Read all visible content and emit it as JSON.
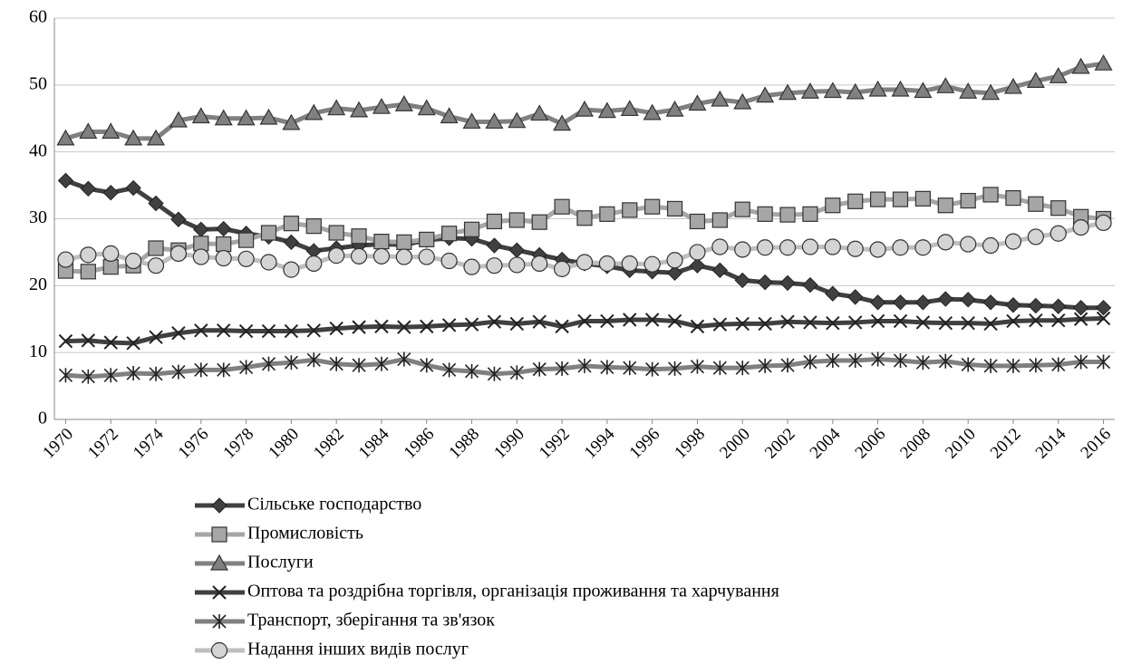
{
  "chart_data": {
    "type": "line",
    "x": [
      1970,
      1971,
      1972,
      1973,
      1974,
      1975,
      1976,
      1977,
      1978,
      1979,
      1980,
      1981,
      1982,
      1983,
      1984,
      1985,
      1986,
      1987,
      1988,
      1989,
      1990,
      1991,
      1992,
      1993,
      1994,
      1995,
      1996,
      1997,
      1998,
      1999,
      2000,
      2001,
      2002,
      2003,
      2004,
      2005,
      2006,
      2007,
      2008,
      2009,
      2010,
      2011,
      2012,
      2013,
      2014,
      2015,
      2016
    ],
    "xlim": [
      1969.5,
      2016.5
    ],
    "xticks": [
      1970,
      1972,
      1974,
      1976,
      1978,
      1980,
      1982,
      1984,
      1986,
      1988,
      1990,
      1992,
      1994,
      1996,
      1998,
      2000,
      2002,
      2004,
      2006,
      2008,
      2010,
      2012,
      2014,
      2016
    ],
    "ylim": [
      0,
      60
    ],
    "yticks": [
      0,
      10,
      20,
      30,
      40,
      50,
      60
    ],
    "grid": true,
    "series": [
      {
        "name": "Сільське господарство",
        "color": "#404040",
        "marker": "diamond",
        "values": [
          35.7,
          34.5,
          33.9,
          34.6,
          32.3,
          29.9,
          28.4,
          28.5,
          27.8,
          27.3,
          26.5,
          25.2,
          25.6,
          26.0,
          26.2,
          26.1,
          26.8,
          27.1,
          27.0,
          26.0,
          25.3,
          24.6,
          23.9,
          23.3,
          22.9,
          22.3,
          22.1,
          21.9,
          23.0,
          22.3,
          20.8,
          20.5,
          20.4,
          20.1,
          18.8,
          18.3,
          17.5,
          17.5,
          17.5,
          18.0,
          17.9,
          17.5,
          17.1,
          17.0,
          16.9,
          16.7,
          16.7
        ]
      },
      {
        "name": "Промисловість",
        "color": "#a6a6a6",
        "marker": "square",
        "values": [
          22.2,
          22.1,
          22.8,
          23.0,
          25.6,
          25.3,
          26.3,
          26.2,
          26.8,
          27.9,
          29.3,
          28.9,
          27.9,
          27.4,
          26.6,
          26.5,
          26.9,
          27.8,
          28.4,
          29.6,
          29.8,
          29.5,
          31.8,
          30.1,
          30.7,
          31.3,
          31.8,
          31.5,
          29.6,
          29.8,
          31.4,
          30.7,
          30.6,
          30.7,
          32.0,
          32.6,
          32.9,
          32.9,
          33.0,
          32.0,
          32.7,
          33.6,
          33.1,
          32.2,
          31.6,
          30.3,
          30.0
        ]
      },
      {
        "name": "Послуги",
        "color": "#808080",
        "marker": "triangle",
        "values": [
          42.0,
          43.0,
          43.0,
          42.0,
          42.0,
          44.7,
          45.3,
          45.0,
          45.0,
          45.1,
          44.3,
          45.8,
          46.5,
          46.2,
          46.7,
          47.1,
          46.5,
          45.3,
          44.5,
          44.5,
          44.6,
          45.7,
          44.2,
          46.3,
          46.1,
          46.4,
          45.8,
          46.3,
          47.2,
          47.8,
          47.4,
          48.4,
          48.8,
          49.0,
          49.1,
          48.9,
          49.3,
          49.3,
          49.1,
          49.8,
          49.0,
          48.8,
          49.7,
          50.6,
          51.3,
          52.7,
          53.2
        ]
      },
      {
        "name": "Оптова та роздрібна торгівля, організація проживання та харчування",
        "color": "#404040",
        "marker": "x",
        "values": [
          11.7,
          11.8,
          11.5,
          11.4,
          12.3,
          12.9,
          13.3,
          13.3,
          13.2,
          13.2,
          13.2,
          13.3,
          13.6,
          13.8,
          13.9,
          13.8,
          13.9,
          14.1,
          14.2,
          14.6,
          14.3,
          14.6,
          13.9,
          14.7,
          14.7,
          14.9,
          14.9,
          14.7,
          13.9,
          14.2,
          14.3,
          14.3,
          14.6,
          14.5,
          14.4,
          14.5,
          14.7,
          14.7,
          14.5,
          14.4,
          14.4,
          14.3,
          14.7,
          14.8,
          14.8,
          15.0,
          15.1
        ]
      },
      {
        "name": "Транспорт,  зберігання та зв'язок",
        "color": "#808080",
        "marker": "asterisk",
        "values": [
          6.6,
          6.4,
          6.6,
          6.9,
          6.8,
          7.1,
          7.4,
          7.4,
          7.8,
          8.3,
          8.5,
          8.9,
          8.3,
          8.1,
          8.3,
          9.0,
          8.1,
          7.4,
          7.2,
          6.8,
          7.0,
          7.5,
          7.6,
          8.0,
          7.8,
          7.7,
          7.5,
          7.6,
          7.9,
          7.7,
          7.7,
          8.0,
          8.1,
          8.6,
          8.8,
          8.8,
          9.0,
          8.8,
          8.5,
          8.7,
          8.2,
          8.0,
          8.0,
          8.1,
          8.2,
          8.6,
          8.6
        ]
      },
      {
        "name": "Надання інших видів послуг",
        "color": "#bfbfbf",
        "marker": "circle",
        "values": [
          23.9,
          24.6,
          24.8,
          23.7,
          23.0,
          24.8,
          24.3,
          24.1,
          24.0,
          23.5,
          22.4,
          23.3,
          24.5,
          24.4,
          24.4,
          24.3,
          24.3,
          23.7,
          22.8,
          23.0,
          23.1,
          23.3,
          22.5,
          23.5,
          23.3,
          23.3,
          23.2,
          23.8,
          25.0,
          25.8,
          25.4,
          25.7,
          25.7,
          25.8,
          25.8,
          25.5,
          25.4,
          25.7,
          25.7,
          26.5,
          26.2,
          26.0,
          26.6,
          27.3,
          27.8,
          28.7,
          29.4
        ]
      }
    ]
  }
}
